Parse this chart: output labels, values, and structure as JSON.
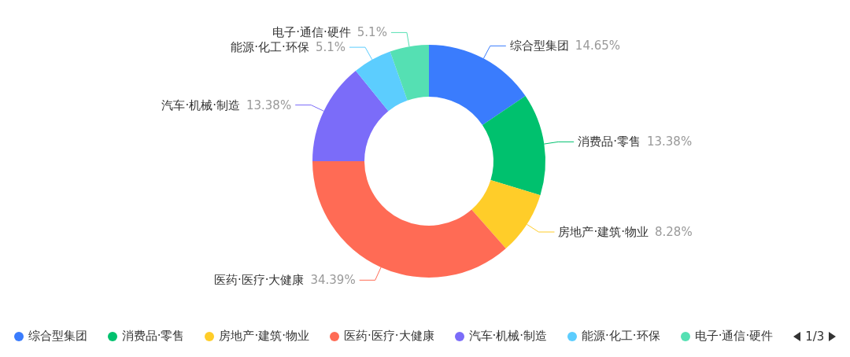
{
  "chart_data": {
    "type": "donut",
    "categories": [
      "综合型集团",
      "消费品·零售",
      "房地产·建筑·物业",
      "医药·医疗·大健康",
      "汽车·机械·制造",
      "能源·化工·环保",
      "电子·通信·硬件"
    ],
    "values": [
      14.65,
      13.38,
      8.28,
      34.39,
      13.38,
      5.1,
      5.1
    ],
    "value_labels": [
      "14.65%",
      "13.38%",
      "8.28%",
      "34.39%",
      "13.38%",
      "5.1%",
      "5.1%"
    ],
    "colors": [
      "#3a7cfd",
      "#00c16e",
      "#ffcd29",
      "#ff6b55",
      "#7b6cf9",
      "#5ccdfe",
      "#55e0b3"
    ],
    "legend": "bottom",
    "annotations": [
      "1/3"
    ]
  }
}
